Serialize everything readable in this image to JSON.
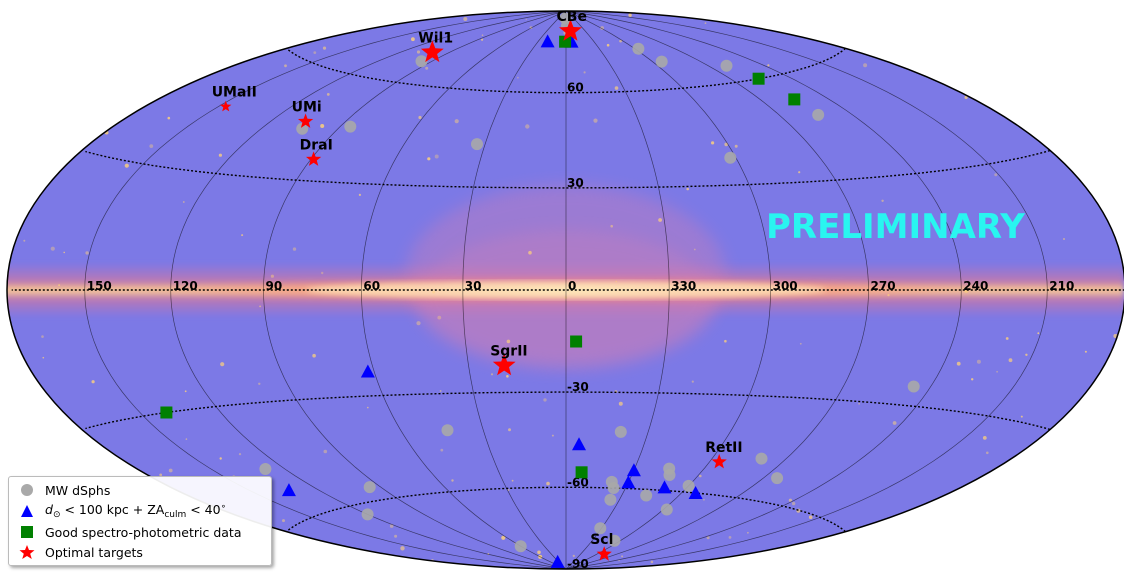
{
  "chart_data": {
    "type": "scatter",
    "projection": "aitoff-hammer all-sky, galactic coordinates",
    "background": "Fermi-LAT all-sky gamma-ray count map",
    "annotation": "PRELIMINARY",
    "lon_ticks": [
      "150",
      "120",
      "90",
      "60",
      "30",
      "0",
      "330",
      "300",
      "270",
      "240",
      "210"
    ],
    "lat_ticks": [
      "60",
      "30",
      "-30",
      "-60",
      "-90"
    ],
    "lon_tick_values": [
      150,
      120,
      90,
      60,
      30,
      0,
      -30,
      -60,
      -90,
      -120,
      -150
    ],
    "lat_tick_values": [
      60,
      30,
      -30,
      -60,
      -90
    ],
    "legend": {
      "items": [
        {
          "label": "MW dSphs",
          "marker": "circle",
          "color": "#a9a9a9"
        },
        {
          "label_pre": "d",
          "label_sub1": "⊙",
          "label_mid": " < 100 kpc + ZA",
          "label_sub2": "culm",
          "label_mid2": " < 40",
          "label_sup": "∘",
          "marker": "triangle",
          "color": "#0000ff"
        },
        {
          "label": "Good spectro-photometric data",
          "marker": "square",
          "color": "#008000"
        },
        {
          "label": "Optimal targets",
          "marker": "star",
          "color": "#ff0000"
        }
      ],
      "placement": "lower-left"
    },
    "series": [
      {
        "name": "MW dSphs",
        "marker": "circle",
        "color": "#a9a9a9",
        "points": [
          [
            2,
            87
          ],
          [
            358,
            84
          ],
          [
            297,
            74
          ],
          [
            294,
            69
          ],
          [
            260,
            65
          ],
          [
            254,
            48
          ],
          [
            96,
            67
          ],
          [
            104,
            44
          ],
          [
            86,
            46
          ],
          [
            33,
            43
          ],
          [
            302,
            38
          ],
          [
            246,
            -25
          ],
          [
            43,
            -41
          ],
          [
            340,
            -42
          ],
          [
            128,
            -47
          ],
          [
            95,
            -56
          ],
          [
            315,
            -53
          ],
          [
            313,
            -55
          ],
          [
            338,
            -58
          ],
          [
            336,
            -60
          ],
          [
            300,
            -58
          ],
          [
            317,
            -62
          ],
          [
            280,
            -48
          ],
          [
            335,
            -64
          ],
          [
            120,
            -63
          ],
          [
            298,
            -66
          ],
          [
            264,
            -53
          ],
          [
            331,
            -74
          ],
          [
            306,
            -78
          ],
          [
            60,
            -80
          ]
        ]
      },
      {
        "name": "d_sun < 100 kpc + ZA_culm < 40",
        "marker": "triangle",
        "color": "#0000ff",
        "points": [
          [
            20,
            78
          ],
          [
            354,
            78
          ],
          [
            62,
            -23
          ],
          [
            133,
            -53
          ],
          [
            355,
            -46
          ],
          [
            330,
            -54
          ],
          [
            330,
            -58
          ],
          [
            311,
            -59
          ],
          [
            293,
            -60
          ],
          [
            34,
            -87
          ]
        ]
      },
      {
        "name": "Good spectro-photometric data",
        "marker": "square",
        "color": "#008000",
        "points": [
          [
            1,
            78
          ],
          [
            256,
            60
          ],
          [
            255,
            53
          ],
          [
            357,
            -15
          ],
          [
            140,
            -30
          ],
          [
            353,
            -55
          ]
        ]
      },
      {
        "name": "Optimal targets",
        "marker": "star",
        "color": "#ff0000",
        "labels": [
          "CBe",
          "Wil1",
          "UMi",
          "UMaII",
          "DraI",
          "SgrII",
          "RetII",
          "Scl"
        ],
        "points": [
          [
            353,
            82
          ],
          [
            101,
            70
          ],
          [
            106,
            46
          ],
          [
            147,
            46
          ],
          [
            89,
            36
          ],
          [
            19,
            -22
          ],
          [
            296,
            -50
          ],
          [
            288,
            -83
          ]
        ]
      }
    ],
    "xlabel": "",
    "ylabel": "",
    "title": ""
  }
}
